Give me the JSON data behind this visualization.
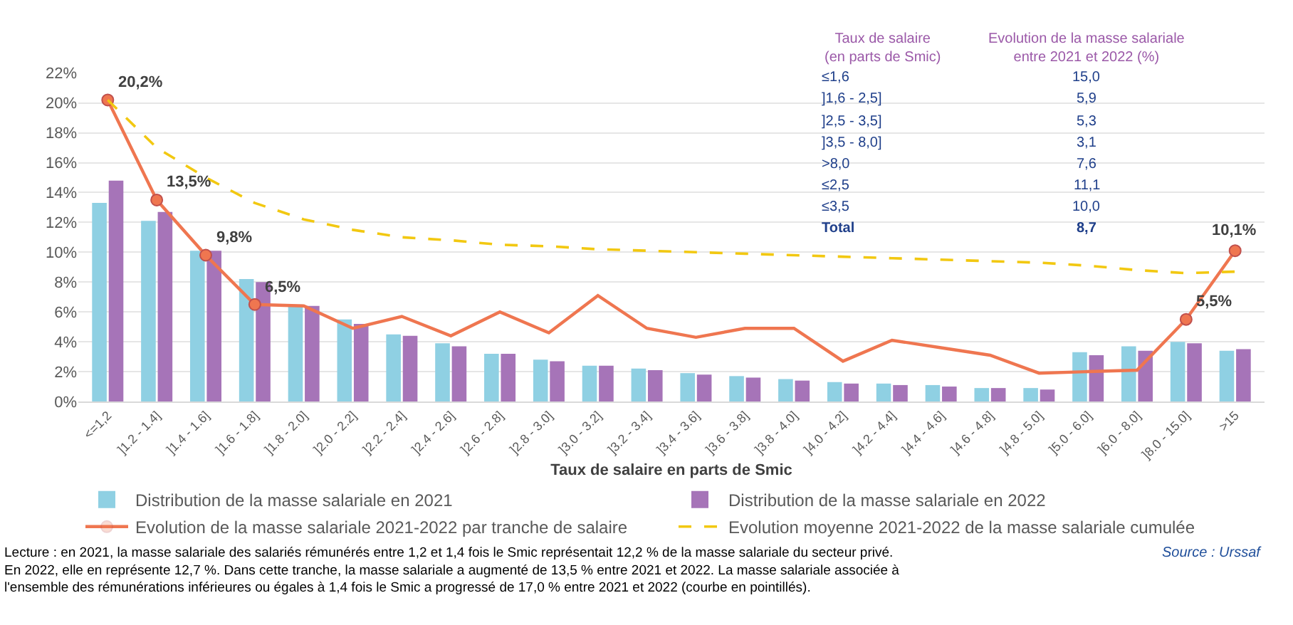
{
  "chart_data": {
    "type": "bar",
    "xlabel": "Taux de salaire en parts de Smic",
    "categories": [
      "<=1,2",
      "]1.2 - 1.4]",
      "]1.4 - 1.6]",
      "]1.6 - 1.8]",
      "]1.8 - 2.0]",
      "]2.0 - 2.2]",
      "]2.2 - 2.4]",
      "]2.4 - 2.6]",
      "]2.6 - 2.8]",
      "]2.8 - 3.0]",
      "]3.0 - 3.2]",
      "]3.2 - 3.4]",
      "]3.4 - 3.6]",
      "]3.6 - 3.8]",
      "]3.8 - 4.0]",
      "]4.0 - 4.2]",
      "]4.2 - 4.4]",
      "]4.4 - 4.6]",
      "]4.6 - 4.8]",
      "]4.8 - 5.0]",
      "]5.0 - 6.0]",
      "]6.0 - 8.0]",
      "]8.0 - 15.0]",
      ">15"
    ],
    "series": [
      {
        "name": "Distribution de la masse salariale en 2021",
        "color": "#8fd0e3",
        "values": [
          13.3,
          12.1,
          10.1,
          8.2,
          6.5,
          5.5,
          4.5,
          3.9,
          3.2,
          2.8,
          2.4,
          2.2,
          1.9,
          1.7,
          1.5,
          1.3,
          1.2,
          1.1,
          0.9,
          0.9,
          3.3,
          3.7,
          4.0,
          3.4
        ]
      },
      {
        "name": "Distribution de la masse salariale en 2022",
        "color": "#a674b8",
        "values": [
          14.8,
          12.7,
          10.1,
          8.0,
          6.4,
          5.2,
          4.4,
          3.7,
          3.2,
          2.7,
          2.4,
          2.1,
          1.8,
          1.6,
          1.4,
          1.2,
          1.1,
          1.0,
          0.9,
          0.8,
          3.1,
          3.4,
          3.9,
          3.5
        ]
      },
      {
        "name": "Evolution de la masse salariale 2021-2022 par tranche de salaire",
        "type": "line",
        "color": "#ef7650",
        "line_style": "solid",
        "values": [
          20.2,
          13.5,
          9.8,
          6.5,
          6.4,
          4.9,
          5.7,
          4.4,
          6.0,
          4.6,
          7.1,
          4.9,
          4.3,
          4.9,
          4.9,
          2.7,
          4.1,
          3.6,
          3.1,
          1.9,
          2.0,
          2.1,
          5.5,
          10.1
        ],
        "value_labels": [
          "20,2%",
          "13,5%",
          "9,8%",
          "6,5%",
          null,
          null,
          null,
          null,
          null,
          null,
          null,
          null,
          null,
          null,
          null,
          null,
          null,
          null,
          null,
          null,
          null,
          null,
          "5,5%",
          "10,1%"
        ]
      },
      {
        "name": "Evolution moyenne 2021-2022 de la masse salariale cumulée",
        "type": "line",
        "color": "#f2c811",
        "line_style": "dashed",
        "values": [
          20.2,
          17.0,
          15.0,
          13.3,
          12.2,
          11.5,
          11.0,
          10.8,
          10.5,
          10.4,
          10.2,
          10.1,
          10.0,
          9.9,
          9.8,
          9.7,
          9.6,
          9.5,
          9.4,
          9.3,
          9.1,
          8.8,
          8.6,
          8.7
        ]
      }
    ],
    "ylim": [
      0,
      22
    ],
    "yticks": [
      {
        "value": 0,
        "label": "0%"
      },
      {
        "value": 2,
        "label": "2%"
      },
      {
        "value": 4,
        "label": "4%"
      },
      {
        "value": 6,
        "label": "6%"
      },
      {
        "value": 8,
        "label": "8%"
      },
      {
        "value": 10,
        "label": "10%"
      },
      {
        "value": 12,
        "label": "12%"
      },
      {
        "value": 14,
        "label": "14%"
      },
      {
        "value": 16,
        "label": "16%"
      },
      {
        "value": 18,
        "label": "18%"
      },
      {
        "value": 20,
        "label": "20%"
      },
      {
        "value": 22,
        "label": "22%"
      }
    ],
    "grid": "y",
    "legend": "bottom",
    "annotations": [
      "Lecture : en 2021, la masse salariale des salariés rémunérés entre 1,2 et 1,4 fois le Smic représentait 12,2 % de la masse salariale du secteur privé. En 2022, elle en représente 12,7 %. Dans cette tranche, la masse salariale a augmenté de 13,5 % entre 2021 et 2022. La masse salariale associée à l'ensemble des rémunérations inférieures ou égales à 1,4 fois le Smic a progressé de 17,0 % entre 2021 et 2022 (courbe en pointillés).",
      "Source : Urssaf",
      "Taux de salaire (en parts de Smic)",
      "Evolution de la masse salariale entre 2021 et 2022 (%)",
      "≤1,6",
      "15,0",
      "]1,6 - 2,5]",
      "5,9",
      "]2,5 - 3,5]",
      "5,3",
      "]3,5 - 8,0]",
      "3,1",
      ">8,0",
      "7,6",
      "≤2,5",
      "11,1",
      "≤3,5",
      "10,0",
      "Total",
      "8,7"
    ]
  }
}
